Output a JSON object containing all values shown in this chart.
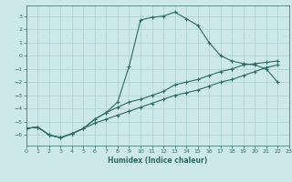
{
  "xlabel": "Humidex (Indice chaleur)",
  "background_color": "#cce8e8",
  "line_color": "#2d6b63",
  "grid_color": "#aacfcf",
  "xlim": [
    0,
    23
  ],
  "ylim": [
    -6.8,
    3.8
  ],
  "yticks": [
    -6,
    -5,
    -4,
    -3,
    -2,
    -1,
    0,
    1,
    2,
    3
  ],
  "xticks": [
    0,
    1,
    2,
    3,
    4,
    5,
    6,
    7,
    8,
    9,
    10,
    11,
    12,
    13,
    14,
    15,
    16,
    17,
    18,
    19,
    20,
    21,
    22,
    23
  ],
  "curve_arch_x": [
    0,
    1,
    2,
    3,
    4,
    5,
    6,
    7,
    8,
    9,
    10,
    11,
    12,
    13,
    14,
    15,
    16,
    17,
    18,
    19,
    20,
    21,
    22
  ],
  "curve_arch_y": [
    -5.5,
    -5.4,
    -6.0,
    -6.2,
    -5.9,
    -5.5,
    -4.8,
    -4.3,
    -3.5,
    -0.8,
    2.7,
    2.9,
    3.0,
    3.3,
    2.8,
    2.3,
    1.0,
    0.0,
    -0.4,
    -0.6,
    -0.7,
    -1.0,
    -2.0
  ],
  "curve_mid_x": [
    0,
    1,
    2,
    3,
    4,
    5,
    6,
    7,
    8,
    9,
    10,
    11,
    12,
    13,
    14,
    15,
    16,
    17,
    18,
    19,
    20,
    21,
    22
  ],
  "curve_mid_y": [
    -5.5,
    -5.4,
    -6.0,
    -6.2,
    -5.9,
    -5.5,
    -4.8,
    -4.3,
    -3.9,
    -3.5,
    -3.3,
    -3.0,
    -2.7,
    -2.2,
    -2.0,
    -1.8,
    -1.5,
    -1.2,
    -1.0,
    -0.7,
    -0.6,
    -0.5,
    -0.4
  ],
  "curve_diag_x": [
    0,
    1,
    2,
    3,
    4,
    5,
    6,
    7,
    8,
    9,
    10,
    11,
    12,
    13,
    14,
    15,
    16,
    17,
    18,
    19,
    20,
    21,
    22
  ],
  "curve_diag_y": [
    -5.5,
    -5.4,
    -6.0,
    -6.2,
    -5.9,
    -5.5,
    -5.1,
    -4.8,
    -4.5,
    -4.2,
    -3.9,
    -3.6,
    -3.3,
    -3.0,
    -2.8,
    -2.6,
    -2.3,
    -2.0,
    -1.8,
    -1.5,
    -1.2,
    -0.9,
    -0.7
  ]
}
